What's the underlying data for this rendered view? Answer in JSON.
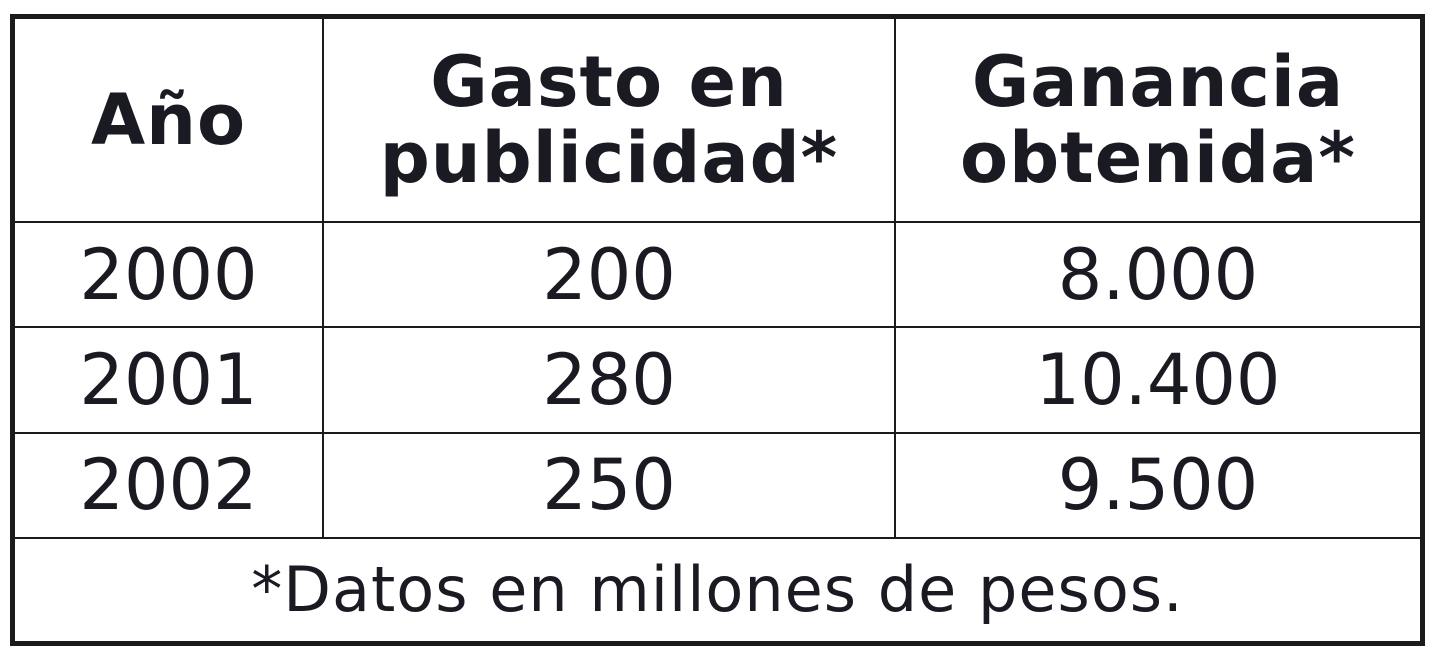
{
  "table": {
    "headers": [
      [
        "Año"
      ],
      [
        "Gasto en",
        "publicidad*"
      ],
      [
        "Ganancia",
        "obtenida*"
      ]
    ],
    "rows": [
      [
        "2000",
        "200",
        "8.000"
      ],
      [
        "2001",
        "280",
        "10.400"
      ],
      [
        "2002",
        "250",
        "9.500"
      ]
    ],
    "footnote": "*Datos en millones de pesos."
  }
}
